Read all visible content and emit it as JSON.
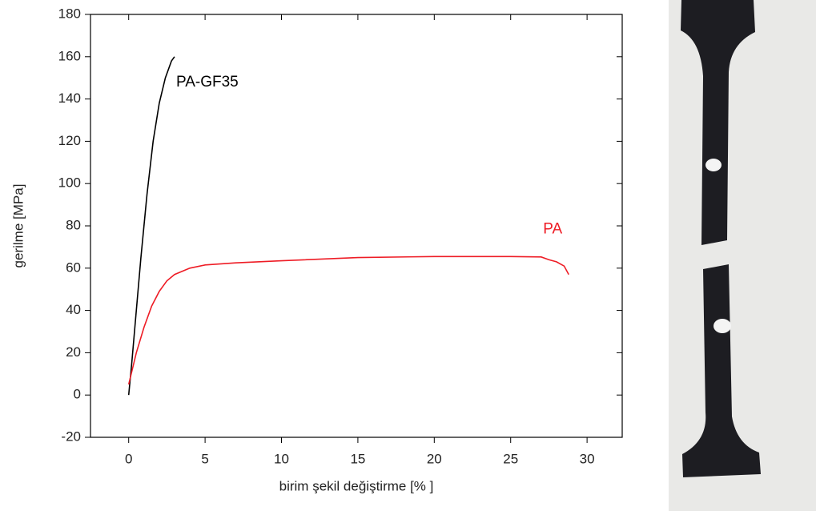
{
  "chart_data": {
    "type": "line",
    "xlabel": "birim şekil değiştirme [% ]",
    "ylabel": "gerilme [MPa]",
    "xlim": [
      -2.5,
      32.3
    ],
    "ylim": [
      -20,
      180
    ],
    "xticks": [
      0,
      5,
      10,
      15,
      20,
      25,
      30
    ],
    "yticks": [
      -20,
      0,
      20,
      40,
      60,
      80,
      100,
      120,
      140,
      160,
      180
    ],
    "grid": false,
    "series": [
      {
        "name": "PA-GF35",
        "color": "#000000",
        "x": [
          0,
          0.2,
          0.5,
          0.8,
          1.2,
          1.6,
          2.0,
          2.4,
          2.8,
          3.0
        ],
        "values": [
          0,
          15,
          40,
          65,
          95,
          120,
          138,
          150,
          158,
          160
        ]
      },
      {
        "name": "PA",
        "color": "#ee1c25",
        "x": [
          0,
          0.5,
          1,
          1.5,
          2,
          2.5,
          3,
          4,
          5,
          7,
          10,
          15,
          20,
          25,
          27,
          27.5,
          28,
          28.5,
          28.8
        ],
        "values": [
          5,
          20,
          32,
          42,
          49,
          54,
          57,
          60,
          61.5,
          62.5,
          63.5,
          65,
          65.5,
          65.5,
          65.3,
          64,
          63,
          61,
          57
        ]
      }
    ]
  }
}
